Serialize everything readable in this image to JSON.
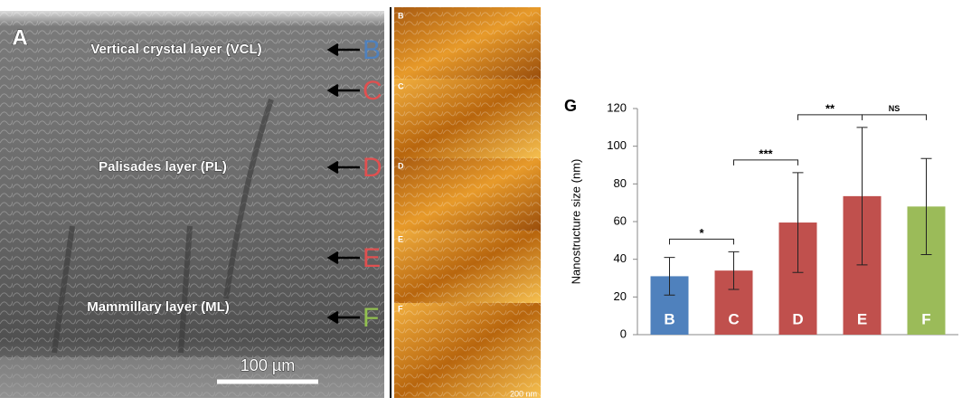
{
  "sem_panel": {
    "label": "A",
    "layers": [
      "Vertical crystal layer (VCL)",
      "Palisades layer (PL)",
      "Mammillary layer (ML)"
    ],
    "arrows": [
      "B",
      "C",
      "D",
      "E",
      "F"
    ],
    "scale_bar": "100 µm"
  },
  "afm_panel": {
    "labels": [
      "B",
      "C",
      "D",
      "E",
      "F"
    ],
    "scale_bar": "200 nm"
  },
  "chart_data": {
    "type": "bar",
    "panel_label": "G",
    "y_label": "Nanostructure size (nm)",
    "categories": [
      "B",
      "C",
      "D",
      "E",
      "F"
    ],
    "values": [
      31,
      34,
      59.5,
      73.5,
      68
    ],
    "errors": [
      10,
      10,
      26.5,
      36.5,
      25.5
    ],
    "colors": [
      "#4f81bd",
      "#c0504d",
      "#c0504d",
      "#c0504d",
      "#9bbb59"
    ],
    "ylim": [
      0,
      120
    ],
    "yticks": [
      0,
      20,
      40,
      60,
      80,
      100,
      120
    ],
    "significance": [
      {
        "between": [
          "B",
          "C"
        ],
        "label": "*"
      },
      {
        "between": [
          "C",
          "D"
        ],
        "label": "***"
      },
      {
        "between": [
          "D",
          "E"
        ],
        "label": "**"
      },
      {
        "between": [
          "E",
          "F"
        ],
        "label": "NS"
      }
    ]
  }
}
